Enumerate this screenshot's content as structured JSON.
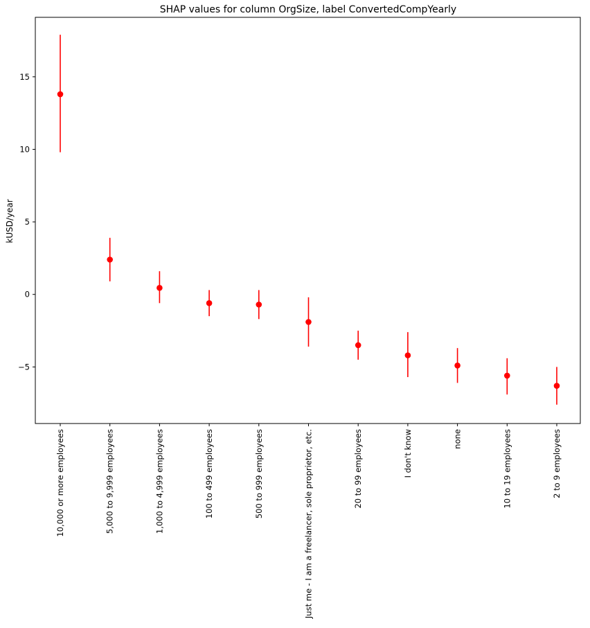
{
  "chart_data": {
    "type": "scatter",
    "title": "SHAP values for column OrgSize, label ConvertedCompYearly",
    "xlabel": "",
    "ylabel": "kUSD/year",
    "ylim": [
      -8.9,
      19.1
    ],
    "yticks": [
      -5,
      0,
      5,
      10,
      15
    ],
    "grid": false,
    "color": "#ff0000",
    "categories": [
      "10,000 or more employees",
      "5,000 to 9,999 employees",
      "1,000 to 4,999 employees",
      "100 to 499 employees",
      "500 to 999 employees",
      "Just me - I am a freelancer, sole proprietor, etc.",
      "20 to 99 employees",
      "I don't know",
      "none",
      "10 to 19 employees",
      "2 to 9 employees"
    ],
    "values": [
      13.8,
      2.4,
      0.45,
      -0.6,
      -0.7,
      -1.9,
      -3.5,
      -4.2,
      -4.9,
      -5.6,
      -6.3
    ],
    "error_low": [
      9.8,
      0.9,
      -0.6,
      -1.5,
      -1.7,
      -3.6,
      -4.5,
      -5.7,
      -6.1,
      -6.9,
      -7.6
    ],
    "error_high": [
      17.9,
      3.9,
      1.6,
      0.3,
      0.3,
      -0.2,
      -2.5,
      -2.6,
      -3.7,
      -4.4,
      -5.0
    ]
  }
}
